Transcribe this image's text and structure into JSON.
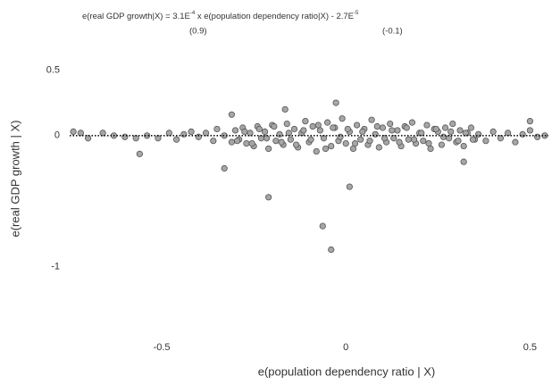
{
  "chart_data": {
    "type": "scatter",
    "equation": [
      "e(real GDP growth|X) = 3.1E",
      "-4",
      " x e(population dependency ratio|X) - 2.7E",
      "-5"
    ],
    "slope_se": "(0.9)",
    "intercept_se": "(-0.1)",
    "fit": {
      "slope": 0.00031,
      "intercept": -2.7e-05
    },
    "x_label": "e(population dependency ratio | X)",
    "y_label": "e(real GDP growth | X)",
    "xlim": [
      -0.75,
      0.55
    ],
    "xticks": [
      -0.5,
      0,
      0.5
    ],
    "ylim": [
      -1.5,
      1.0
    ],
    "yticks": [
      -1,
      0,
      0.5
    ],
    "color": "#a6a6a6",
    "edge_color": "#555555",
    "x": [
      -0.72,
      -0.7,
      -0.66,
      -0.63,
      -0.6,
      -0.57,
      -0.54,
      -0.51,
      -0.48,
      -0.46,
      -0.44,
      -0.42,
      -0.4,
      -0.38,
      -0.36,
      -0.35,
      -0.33,
      -0.31,
      -0.3,
      -0.29,
      -0.28,
      -0.27,
      -0.26,
      -0.25,
      -0.24,
      -0.23,
      -0.22,
      -0.21,
      -0.2,
      -0.19,
      -0.18,
      -0.17,
      -0.16,
      -0.15,
      -0.14,
      -0.13,
      -0.12,
      -0.11,
      -0.1,
      -0.09,
      -0.08,
      -0.07,
      -0.06,
      -0.05,
      -0.04,
      -0.03,
      -0.02,
      -0.01,
      0.0,
      0.01,
      0.02,
      0.03,
      0.04,
      0.05,
      0.06,
      0.07,
      0.08,
      0.09,
      0.1,
      0.11,
      0.12,
      0.13,
      0.14,
      0.15,
      0.16,
      0.17,
      0.18,
      0.19,
      0.2,
      0.21,
      0.22,
      0.23,
      0.24,
      0.25,
      0.26,
      0.27,
      0.28,
      0.29,
      0.3,
      0.31,
      0.32,
      0.33,
      0.34,
      0.35,
      0.36,
      0.38,
      0.4,
      0.42,
      0.44,
      0.46,
      0.48,
      0.5,
      0.52,
      0.54,
      -0.295,
      -0.275,
      -0.255,
      -0.235,
      -0.215,
      -0.195,
      -0.175,
      -0.155,
      -0.135,
      -0.115,
      -0.095,
      -0.075,
      -0.055,
      -0.035,
      -0.015,
      0.005,
      0.025,
      0.045,
      0.065,
      0.085,
      0.105,
      0.125,
      0.145,
      0.165,
      0.185,
      0.205,
      0.225,
      0.245,
      0.265,
      0.285,
      0.305,
      0.325,
      0.345,
      -0.027,
      -0.165,
      -0.31,
      -0.063,
      -0.04,
      -0.21,
      0.01,
      -0.33,
      -0.56,
      0.5,
      0.32,
      -0.74
    ],
    "values": [
      0.02,
      -0.02,
      0.02,
      0.0,
      -0.01,
      -0.02,
      0.0,
      -0.02,
      0.02,
      -0.03,
      0.01,
      0.03,
      -0.01,
      0.02,
      -0.04,
      0.05,
      0.0,
      -0.05,
      0.04,
      -0.03,
      0.06,
      -0.06,
      0.02,
      -0.08,
      0.07,
      -0.02,
      0.03,
      -0.1,
      0.08,
      -0.04,
      0.01,
      -0.07,
      0.09,
      -0.03,
      0.05,
      -0.09,
      0.02,
      0.11,
      -0.05,
      0.07,
      -0.12,
      0.04,
      -0.02,
      0.1,
      -0.08,
      0.06,
      -0.04,
      0.13,
      -0.06,
      0.03,
      -0.1,
      0.08,
      -0.03,
      0.05,
      -0.07,
      0.12,
      0.01,
      -0.09,
      0.06,
      -0.05,
      0.09,
      -0.02,
      0.04,
      -0.08,
      0.07,
      -0.03,
      0.1,
      -0.06,
      0.02,
      -0.04,
      0.08,
      -0.1,
      0.05,
      0.03,
      -0.07,
      0.06,
      -0.02,
      0.09,
      -0.05,
      0.04,
      -0.08,
      0.02,
      0.06,
      -0.03,
      0.01,
      -0.04,
      0.03,
      -0.02,
      0.02,
      -0.05,
      0.01,
      0.04,
      -0.01,
      0.0,
      -0.04,
      0.03,
      -0.06,
      0.05,
      -0.02,
      0.07,
      -0.05,
      0.02,
      -0.07,
      0.04,
      -0.03,
      0.08,
      -0.1,
      0.06,
      -0.01,
      0.05,
      -0.06,
      0.03,
      -0.04,
      0.07,
      -0.02,
      0.04,
      -0.05,
      0.06,
      -0.03,
      0.02,
      -0.06,
      0.05,
      -0.01,
      0.03,
      -0.04,
      0.02,
      -0.03,
      0.25,
      0.2,
      0.16,
      -0.69,
      -0.87,
      -0.47,
      -0.39,
      -0.25,
      -0.14,
      0.11,
      -0.2,
      0.03
    ]
  }
}
